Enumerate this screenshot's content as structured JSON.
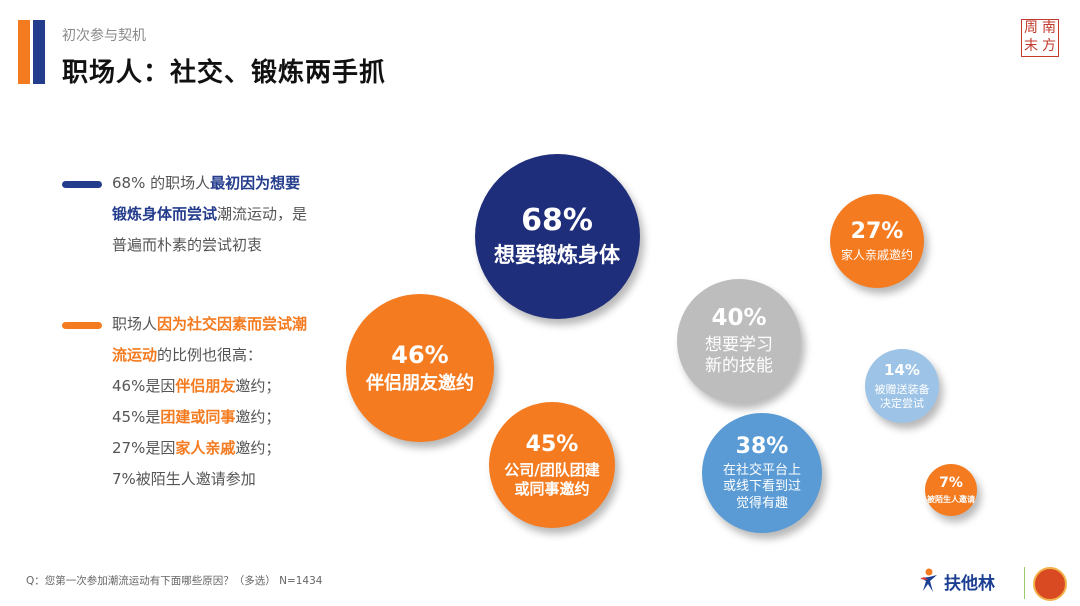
{
  "header": {
    "subtitle": "初次参与契机",
    "title": "职场人：社交、锻炼两手抓",
    "seal_chars": [
      "周",
      "南",
      "末",
      "方"
    ]
  },
  "bullets": {
    "first": {
      "pre": "68% 的职场人",
      "highlight": "最初因为想要锻炼身体而尝试",
      "post": "潮流运动，是普遍而朴素的尝试初衷"
    },
    "second": {
      "line1_pre": "职场人",
      "line1_highlight": "因为社交因素而尝试潮流运动",
      "line1_post": "的比例也很高：",
      "l2_pre": "46%是因",
      "l2_hl": "伴侣朋友",
      "l2_post": "邀约；",
      "l3_pre": "45%是",
      "l3_hl": "团建或同事",
      "l3_post": "邀约；",
      "l4_pre": "27%是因",
      "l4_hl": "家人亲戚",
      "l4_post": "邀约；",
      "l5": "7%被陌生人邀请参加"
    }
  },
  "chart_data": {
    "type": "bubble",
    "colors": {
      "navy": "#1F2E7A",
      "orange": "#F47B20",
      "gray": "#BDBDBD",
      "blue": "#5A9BD5",
      "lightblue": "#9DC3E6"
    },
    "items": [
      {
        "value": 68,
        "pct": "68%",
        "label": "想要锻炼身体",
        "color": "#1F2E7A"
      },
      {
        "value": 46,
        "pct": "46%",
        "label": "伴侣朋友邀约",
        "color": "#F47B20"
      },
      {
        "value": 45,
        "pct": "45%",
        "label": "公司/团队团建\n或同事邀约",
        "color": "#F47B20"
      },
      {
        "value": 40,
        "pct": "40%",
        "label": "想要学习\n新的技能",
        "color": "#BDBDBD"
      },
      {
        "value": 38,
        "pct": "38%",
        "label": "在社交平台上\n或线下看到过\n觉得有趣",
        "color": "#5A9BD5"
      },
      {
        "value": 27,
        "pct": "27%",
        "label": "家人亲戚邀约",
        "color": "#F47B20"
      },
      {
        "value": 14,
        "pct": "14%",
        "label": "被赠送装备\n决定尝试",
        "color": "#9DC3E6"
      },
      {
        "value": 7,
        "pct": "7%",
        "label": "被陌生人邀请",
        "color": "#F47B20"
      }
    ]
  },
  "footer": {
    "note": "Q：您第一次参加潮流运动有下面哪些原因？（多选） N=1434",
    "logo_text": "扶他林"
  }
}
